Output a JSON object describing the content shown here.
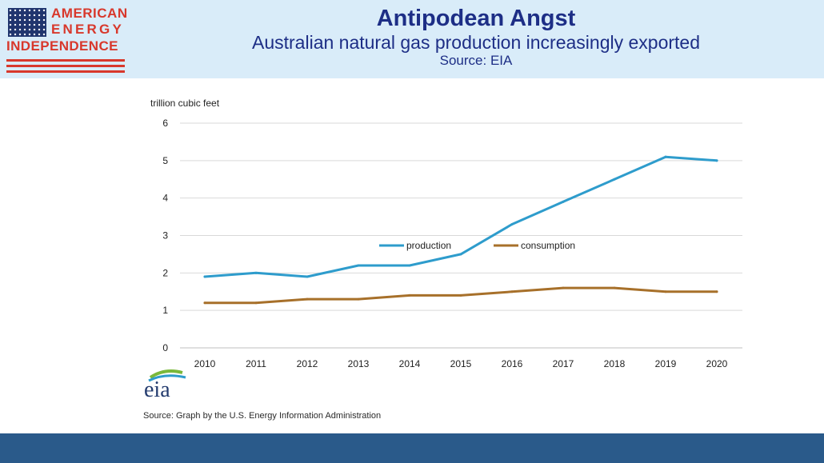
{
  "header": {
    "logo_lines": [
      "AMERICAN",
      "ENERGY",
      "INDEPENDENCE"
    ],
    "title": "Antipodean Angst",
    "subtitle": "Australian natural gas production increasingly exported",
    "source": "Source: EIA"
  },
  "colors": {
    "header_bg": "#d9ecf9",
    "title_text": "#1d2e86",
    "logo_red": "#d8382c",
    "flag_blue": "#20356e",
    "production_line": "#2e9ccc",
    "consumption_line": "#a7702a",
    "bottom_bar": "#2a5a8a"
  },
  "chart_data": {
    "type": "line",
    "ylabel": "trillion cubic feet",
    "xlabel": "",
    "categories": [
      "2010",
      "2011",
      "2012",
      "2013",
      "2014",
      "2015",
      "2016",
      "2017",
      "2018",
      "2019",
      "2020"
    ],
    "ylim": [
      0,
      6
    ],
    "yticks": [
      "0",
      "1",
      "2",
      "3",
      "4",
      "5",
      "6"
    ],
    "grid": true,
    "legend_position": "center",
    "series": [
      {
        "name": "production",
        "color": "#2e9ccc",
        "values": [
          1.9,
          2.0,
          1.9,
          2.2,
          2.2,
          2.5,
          3.3,
          3.9,
          4.5,
          5.1,
          5.0
        ]
      },
      {
        "name": "consumption",
        "color": "#a7702a",
        "values": [
          1.2,
          1.2,
          1.3,
          1.3,
          1.4,
          1.4,
          1.5,
          1.6,
          1.6,
          1.5,
          1.5
        ]
      }
    ]
  },
  "eia_logo_text": "eia",
  "footer": {
    "source": "Source: Graph by the U.S. Energy Information Administration"
  }
}
